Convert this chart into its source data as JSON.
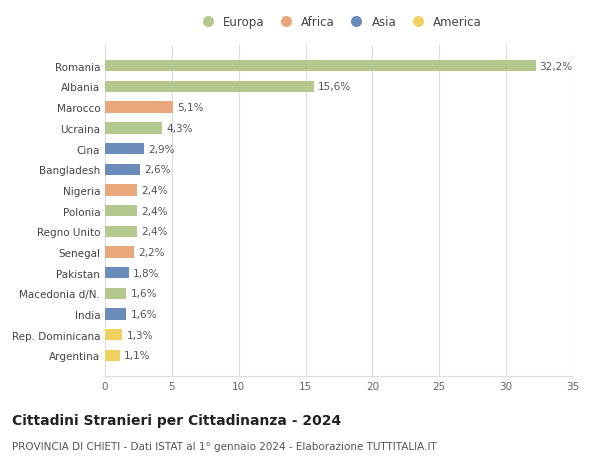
{
  "countries": [
    "Romania",
    "Albania",
    "Marocco",
    "Ucraina",
    "Cina",
    "Bangladesh",
    "Nigeria",
    "Polonia",
    "Regno Unito",
    "Senegal",
    "Pakistan",
    "Macedonia d/N.",
    "India",
    "Rep. Dominicana",
    "Argentina"
  ],
  "values": [
    32.2,
    15.6,
    5.1,
    4.3,
    2.9,
    2.6,
    2.4,
    2.4,
    2.4,
    2.2,
    1.8,
    1.6,
    1.6,
    1.3,
    1.1
  ],
  "continents": [
    "Europa",
    "Europa",
    "Africa",
    "Europa",
    "Asia",
    "Asia",
    "Africa",
    "Europa",
    "Europa",
    "Africa",
    "Asia",
    "Europa",
    "Asia",
    "America",
    "America"
  ],
  "continent_colors": {
    "Europa": "#b5c98e",
    "Africa": "#e8a87c",
    "Asia": "#6b8cba",
    "America": "#f0d060"
  },
  "legend_order": [
    "Europa",
    "Africa",
    "Asia",
    "America"
  ],
  "title": "Cittadini Stranieri per Cittadinanza - 2024",
  "subtitle": "PROVINCIA DI CHIETI - Dati ISTAT al 1° gennaio 2024 - Elaborazione TUTTITALIA.IT",
  "xlim": [
    0,
    35
  ],
  "xticks": [
    0,
    5,
    10,
    15,
    20,
    25,
    30,
    35
  ],
  "background_color": "#ffffff",
  "grid_color": "#dddddd",
  "bar_height": 0.55,
  "label_fontsize": 7.5,
  "title_fontsize": 10,
  "subtitle_fontsize": 7.5,
  "legend_fontsize": 8.5,
  "tick_fontsize": 7.5
}
